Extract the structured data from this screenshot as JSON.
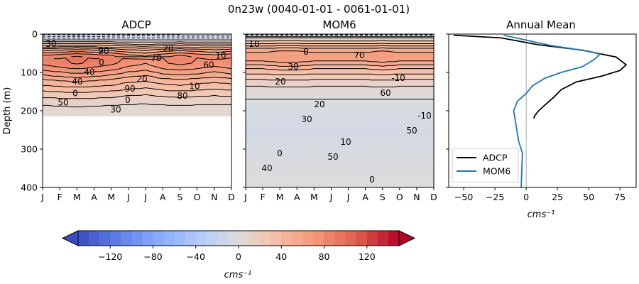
{
  "figure": {
    "suptitle": "0n23w (0040-01-01 - 0061-01-01)"
  },
  "colors": {
    "adcp_line": "#000000",
    "mom6_line": "#1f77b4",
    "zero_line": "#808080"
  },
  "colorbar": {
    "label": "cms⁻¹",
    "range": [
      -150,
      150
    ],
    "extend": "both",
    "cmap": "coolwarm",
    "ticks": [
      -120,
      -80,
      -40,
      0,
      40,
      80,
      120
    ],
    "tick_labels": [
      "−120",
      "−80",
      "−40",
      "0",
      "40",
      "80",
      "120"
    ]
  },
  "chart_data": [
    {
      "type": "heatmap",
      "title": "ADCP",
      "ylabel": "Depth (m)",
      "xlabel": "",
      "x_categories": [
        "J",
        "F",
        "M",
        "A",
        "M",
        "J",
        "J",
        "A",
        "S",
        "O",
        "N",
        "D"
      ],
      "ylim": [
        400,
        0
      ],
      "y_ticks": [
        0,
        100,
        200,
        300,
        400
      ],
      "valid_depth_max": 215,
      "depth_profile": [
        {
          "depth": 0,
          "value": -30
        },
        {
          "depth": 10,
          "value": -10
        },
        {
          "depth": 25,
          "value": 20
        },
        {
          "depth": 40,
          "value": 55
        },
        {
          "depth": 55,
          "value": 80
        },
        {
          "depth": 65,
          "value": 88
        },
        {
          "depth": 80,
          "value": 80
        },
        {
          "depth": 100,
          "value": 65
        },
        {
          "depth": 120,
          "value": 48
        },
        {
          "depth": 140,
          "value": 35
        },
        {
          "depth": 160,
          "value": 22
        },
        {
          "depth": 185,
          "value": 10
        },
        {
          "depth": 215,
          "value": 3
        }
      ],
      "seasonal_amplitude": [
        1.0,
        1.05,
        1.1,
        1.05,
        1.0,
        0.9,
        0.85,
        0.95,
        1.0,
        0.95,
        0.9,
        0.95
      ],
      "contour_labels": [
        "30",
        "40",
        "90",
        "90",
        "70",
        "80",
        "60",
        "50",
        "40",
        "30",
        "20",
        "20",
        "10",
        "10",
        "0",
        "0",
        "0"
      ]
    },
    {
      "type": "heatmap",
      "title": "MOM6",
      "ylabel": "",
      "xlabel": "",
      "x_categories": [
        "J",
        "F",
        "M",
        "A",
        "M",
        "J",
        "J",
        "A",
        "S",
        "O",
        "N",
        "D"
      ],
      "ylim": [
        400,
        0
      ],
      "y_ticks": [
        0,
        100,
        200,
        300,
        400
      ],
      "valid_depth_max": 400,
      "depth_profile": [
        {
          "depth": 0,
          "value": -20
        },
        {
          "depth": 10,
          "value": 10
        },
        {
          "depth": 25,
          "value": 30
        },
        {
          "depth": 40,
          "value": 55
        },
        {
          "depth": 55,
          "value": 65
        },
        {
          "depth": 70,
          "value": 60
        },
        {
          "depth": 90,
          "value": 40
        },
        {
          "depth": 110,
          "value": 25
        },
        {
          "depth": 130,
          "value": 12
        },
        {
          "depth": 150,
          "value": 5
        },
        {
          "depth": 190,
          "value": -5
        },
        {
          "depth": 260,
          "value": -8
        },
        {
          "depth": 330,
          "value": -3
        },
        {
          "depth": 400,
          "value": 0
        }
      ],
      "seasonal_amplitude": [
        1.0,
        1.0,
        1.05,
        1.05,
        1.0,
        1.0,
        1.0,
        1.0,
        1.05,
        1.0,
        1.0,
        1.0
      ],
      "contour_labels": [
        "10",
        "20",
        "30",
        "50",
        "70",
        "60",
        "50",
        "40",
        "30",
        "20",
        "10",
        "0",
        "-10",
        "-10",
        "0",
        "0"
      ]
    },
    {
      "type": "line",
      "title": "Annual Mean",
      "xlabel": "cms⁻¹",
      "ylabel": "",
      "xlim": [
        -62,
        88
      ],
      "ylim": [
        400,
        0
      ],
      "x_ticks": [
        -50,
        -25,
        0,
        25,
        50,
        75
      ],
      "x_tick_labels": [
        "−50",
        "−25",
        "0",
        "25",
        "50",
        "75"
      ],
      "legend_position": "lower-left",
      "series": [
        {
          "name": "ADCP",
          "points": [
            {
              "x": -58,
              "y": 3
            },
            {
              "x": -20,
              "y": 10
            },
            {
              "x": 10,
              "y": 28
            },
            {
              "x": 45,
              "y": 42
            },
            {
              "x": 72,
              "y": 60
            },
            {
              "x": 80,
              "y": 80
            },
            {
              "x": 75,
              "y": 95
            },
            {
              "x": 60,
              "y": 110
            },
            {
              "x": 40,
              "y": 125
            },
            {
              "x": 28,
              "y": 145
            },
            {
              "x": 22,
              "y": 165
            },
            {
              "x": 15,
              "y": 185
            },
            {
              "x": 10,
              "y": 200
            },
            {
              "x": 7,
              "y": 212
            },
            {
              "x": 6,
              "y": 220
            }
          ]
        },
        {
          "name": "MOM6",
          "points": [
            {
              "x": -18,
              "y": 3
            },
            {
              "x": -5,
              "y": 12
            },
            {
              "x": 20,
              "y": 30
            },
            {
              "x": 50,
              "y": 45
            },
            {
              "x": 59,
              "y": 52
            },
            {
              "x": 55,
              "y": 65
            },
            {
              "x": 45,
              "y": 85
            },
            {
              "x": 28,
              "y": 100
            },
            {
              "x": 15,
              "y": 115
            },
            {
              "x": 5,
              "y": 135
            },
            {
              "x": 0,
              "y": 155
            },
            {
              "x": -7,
              "y": 175
            },
            {
              "x": -10,
              "y": 200
            },
            {
              "x": -6,
              "y": 280
            },
            {
              "x": -3,
              "y": 310
            },
            {
              "x": -4,
              "y": 400
            }
          ]
        }
      ]
    }
  ]
}
